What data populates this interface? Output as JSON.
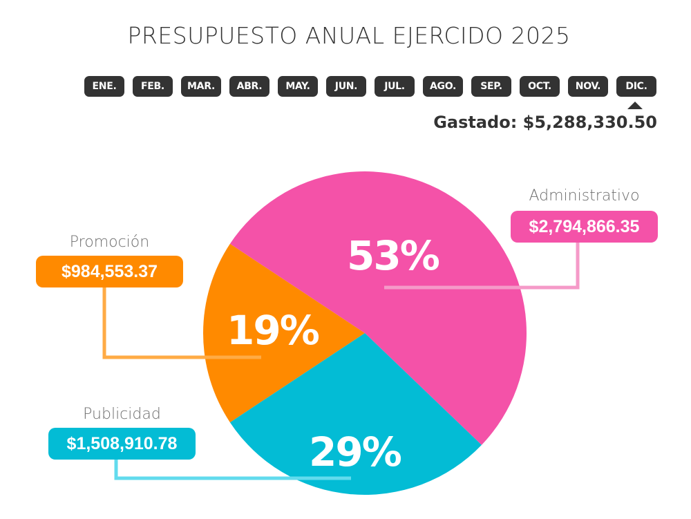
{
  "title": "PRESUPUESTO ANUAL EJERCIDO 2025",
  "months": [
    "ENE.",
    "FEB.",
    "MAR.",
    "ABR.",
    "MAY.",
    "JUN.",
    "JUL.",
    "AGO.",
    "SEP.",
    "OCT.",
    "NOV.",
    "DIC."
  ],
  "selected_month": "DIC.",
  "spent_label": "Gastado: $5,288,330.50",
  "colors": {
    "administrativo": "#f452a8",
    "promocion": "#ff8a00",
    "publicidad": "#03bcd5",
    "administrativo_line": "#f59ac8",
    "promocion_line": "#ffab45",
    "publicidad_line": "#62dbed",
    "dark": "#333333"
  },
  "chart_data": {
    "type": "pie",
    "title": "PRESUPUESTO ANUAL EJERCIDO 2025",
    "total_label": "Gastado: $5,288,330.50",
    "slices": [
      {
        "key": "administrativo",
        "label": "Administrativo",
        "percent": 53,
        "percent_label": "53%",
        "amount": 2794866.35,
        "amount_label": "$2,794,866.35"
      },
      {
        "key": "publicidad",
        "label": "Publicidad",
        "percent": 29,
        "percent_label": "29%",
        "amount": 1508910.78,
        "amount_label": "$1,508,910.78"
      },
      {
        "key": "promocion",
        "label": "Promoción",
        "percent": 19,
        "percent_label": "19%",
        "amount": 984553.37,
        "amount_label": "$984,553.37"
      }
    ],
    "legend": "callout-labels"
  }
}
